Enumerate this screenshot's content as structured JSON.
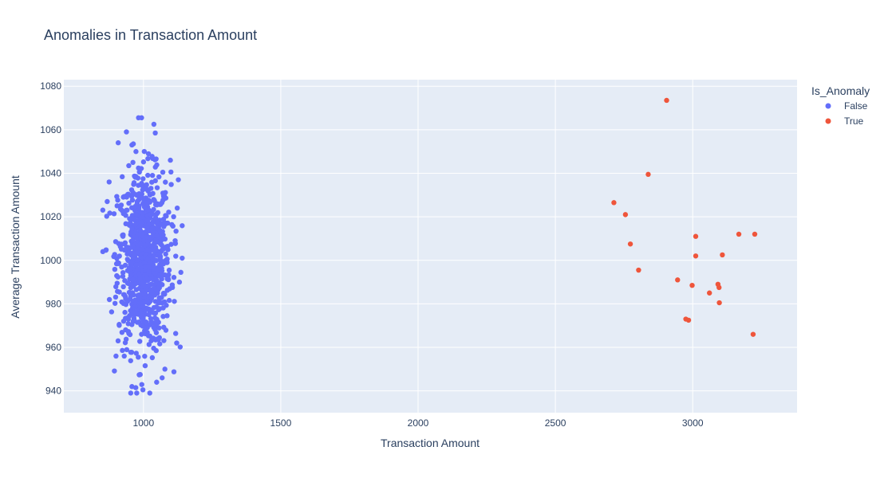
{
  "chart_data": {
    "type": "scatter",
    "title": "Anomalies in Transaction Amount",
    "xlabel": "Transaction Amount",
    "ylabel": "Average Transaction Amount",
    "xlim": [
      710,
      3380
    ],
    "ylim": [
      930,
      1083
    ],
    "x_ticks": [
      1000,
      1500,
      2000,
      2500,
      3000
    ],
    "y_ticks": [
      940,
      960,
      980,
      1000,
      1020,
      1040,
      1060,
      1080
    ],
    "grid": true,
    "legend": {
      "title": "Is_Anomaly",
      "position": "top-right",
      "entries": [
        "False",
        "True"
      ]
    },
    "normal_cluster": {
      "name": "False",
      "color": "#636efa",
      "count": 900,
      "x_mean": 1003,
      "x_std": 48,
      "y_mean": 1000,
      "y_std": 20,
      "x_range": [
        852,
        1141
      ],
      "y_range": [
        939,
        1066
      ],
      "highlighted_points": [
        {
          "x": 993,
          "y": 1065.5
        },
        {
          "x": 1038,
          "y": 1062.5
        },
        {
          "x": 1043,
          "y": 1058.5
        },
        {
          "x": 938,
          "y": 1059
        },
        {
          "x": 908,
          "y": 1054
        },
        {
          "x": 963,
          "y": 1053.5
        },
        {
          "x": 958,
          "y": 1053
        },
        {
          "x": 1003,
          "y": 1050
        },
        {
          "x": 1098,
          "y": 1046
        },
        {
          "x": 1127,
          "y": 1037
        },
        {
          "x": 875,
          "y": 1036
        },
        {
          "x": 868,
          "y": 1027
        },
        {
          "x": 1123,
          "y": 1024
        },
        {
          "x": 852,
          "y": 1004
        },
        {
          "x": 1141,
          "y": 1001
        },
        {
          "x": 1131,
          "y": 990
        },
        {
          "x": 1121,
          "y": 962
        },
        {
          "x": 958,
          "y": 942
        },
        {
          "x": 972,
          "y": 941.5
        },
        {
          "x": 998,
          "y": 940.5
        },
        {
          "x": 1023,
          "y": 939
        },
        {
          "x": 1048,
          "y": 944
        },
        {
          "x": 1068,
          "y": 946
        },
        {
          "x": 1078,
          "y": 950
        },
        {
          "x": 900,
          "y": 956
        },
        {
          "x": 930,
          "y": 956
        }
      ]
    },
    "series": [
      {
        "name": "True",
        "color": "#ef553b",
        "points": [
          {
            "x": 2905,
            "y": 1073.5
          },
          {
            "x": 2838,
            "y": 1039.5
          },
          {
            "x": 2713,
            "y": 1026.5
          },
          {
            "x": 2755,
            "y": 1021
          },
          {
            "x": 3168,
            "y": 1012
          },
          {
            "x": 3226,
            "y": 1012
          },
          {
            "x": 3011,
            "y": 1011
          },
          {
            "x": 2773,
            "y": 1007.5
          },
          {
            "x": 3108,
            "y": 1002.5
          },
          {
            "x": 3011,
            "y": 1002
          },
          {
            "x": 2803,
            "y": 995.5
          },
          {
            "x": 2945,
            "y": 991
          },
          {
            "x": 3092,
            "y": 989
          },
          {
            "x": 2998,
            "y": 988.5
          },
          {
            "x": 3096,
            "y": 987.5
          },
          {
            "x": 3061,
            "y": 985
          },
          {
            "x": 3097,
            "y": 980.5
          },
          {
            "x": 2975,
            "y": 973
          },
          {
            "x": 2985,
            "y": 972.5
          },
          {
            "x": 3220,
            "y": 966
          }
        ]
      }
    ]
  }
}
